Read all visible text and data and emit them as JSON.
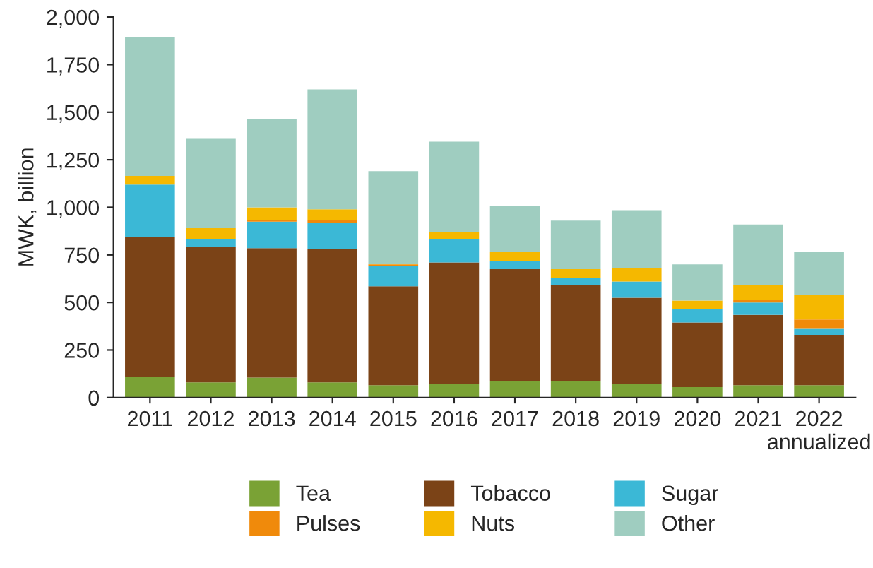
{
  "chart_data": {
    "type": "bar",
    "stacked": true,
    "ylabel": "MWK, billion",
    "categories": [
      "2011",
      "2012",
      "2013",
      "2014",
      "2015",
      "2016",
      "2017",
      "2018",
      "2019",
      "2020",
      "2021",
      "2022\nannualized"
    ],
    "series": [
      {
        "name": "Tea",
        "color": "#7aa235",
        "values": [
          110,
          80,
          105,
          80,
          65,
          70,
          85,
          85,
          70,
          55,
          65,
          65
        ]
      },
      {
        "name": "Tobacco",
        "color": "#7b4317",
        "values": [
          735,
          710,
          680,
          700,
          520,
          640,
          590,
          505,
          455,
          340,
          370,
          265
        ]
      },
      {
        "name": "Sugar",
        "color": "#3bb8d6",
        "values": [
          275,
          45,
          140,
          140,
          105,
          125,
          45,
          40,
          85,
          70,
          65,
          35
        ]
      },
      {
        "name": "Pulses",
        "color": "#f08a0b",
        "values": [
          0,
          0,
          10,
          15,
          10,
          0,
          0,
          0,
          0,
          0,
          15,
          45
        ]
      },
      {
        "name": "Nuts",
        "color": "#f5b800",
        "values": [
          45,
          55,
          65,
          55,
          5,
          35,
          45,
          45,
          70,
          45,
          75,
          130
        ]
      },
      {
        "name": "Other",
        "color": "#9fcdc0",
        "values": [
          730,
          470,
          465,
          630,
          485,
          475,
          240,
          255,
          305,
          190,
          320,
          225
        ]
      }
    ],
    "ylim": [
      0,
      2000
    ],
    "yticks": [
      0,
      {
        "value": 250,
        "label": "250"
      },
      {
        "value": 500,
        "label": "500"
      },
      {
        "value": 750,
        "label": "750"
      },
      {
        "value": 1000,
        "label": "1,000"
      },
      {
        "value": 1250,
        "label": "1,250"
      },
      {
        "value": 1500,
        "label": "1,500"
      },
      {
        "value": 1750,
        "label": "1,750"
      },
      {
        "value": 2000,
        "label": "2,000"
      }
    ],
    "grid": false,
    "legend": "bottom"
  }
}
